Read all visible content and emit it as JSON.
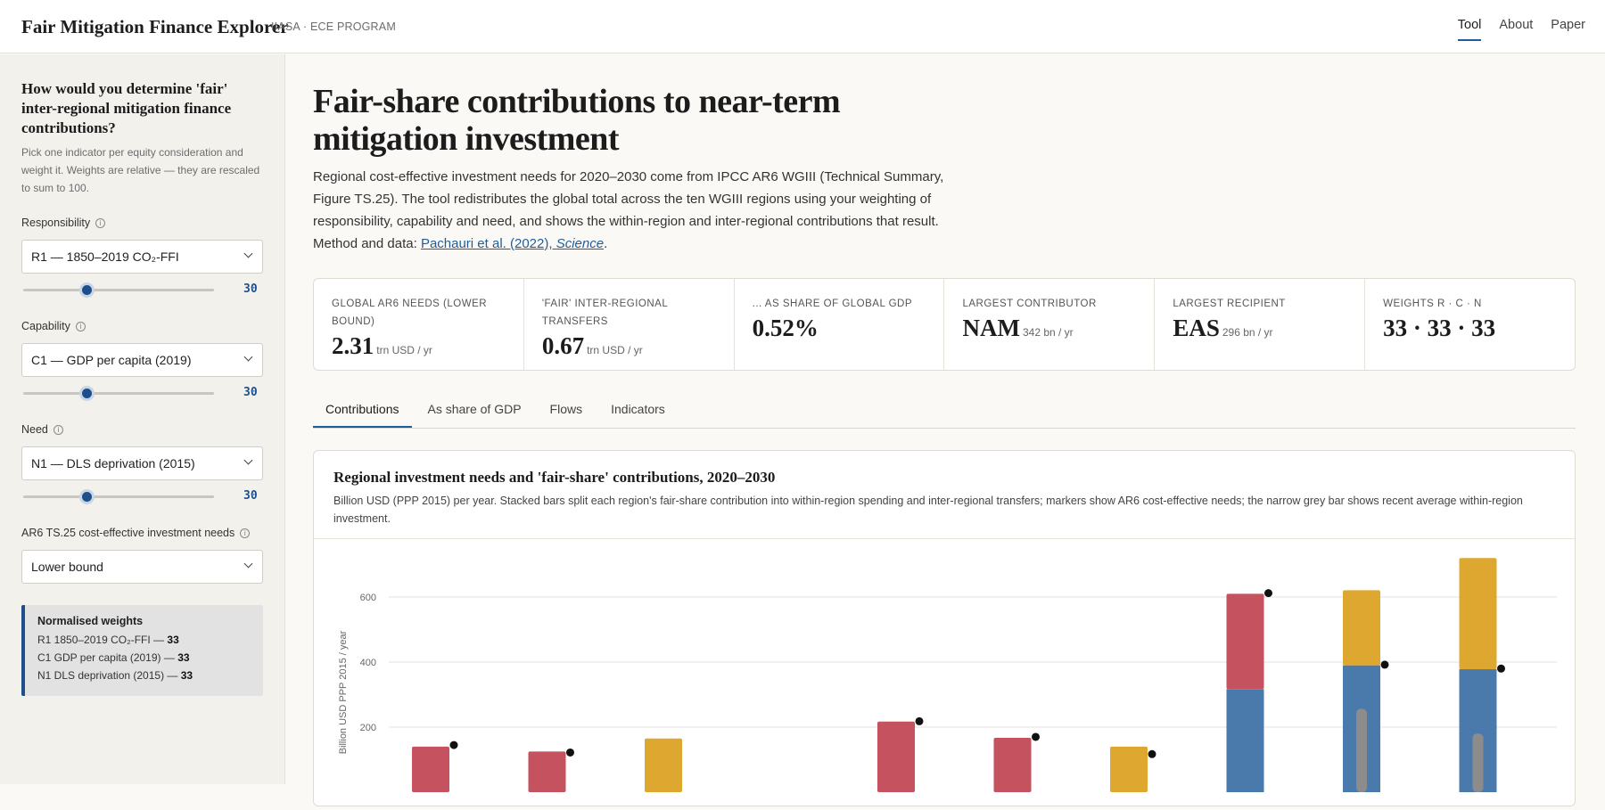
{
  "header": {
    "brand": "Fair Mitigation Finance Explorer",
    "brand_sub": "IIASA · ECE PROGRAM",
    "nav": [
      "Tool",
      "About",
      "Paper"
    ],
    "nav_active": "Tool"
  },
  "sidebar": {
    "title": "How would you determine 'fair' inter-regional mitigation finance contributions?",
    "description": "Pick one indicator per equity consideration and weight it. Weights are relative — they are rescaled to sum to 100.",
    "responsibility": {
      "label": "Responsibility",
      "selected": "R1 — 1850–2019 CO₂-FFI",
      "value": "30",
      "level": 0.33
    },
    "capability": {
      "label": "Capability",
      "selected": "C1 — GDP per capita (2019)",
      "value": "30",
      "level": 0.33
    },
    "need": {
      "label": "Need",
      "selected": "N1 — DLS deprivation (2015)",
      "value": "30",
      "level": 0.33
    },
    "ar6": {
      "label": "AR6 TS.25 cost-effective investment needs",
      "selected": "Lower bound"
    },
    "weights": {
      "title": "Normalised weights",
      "rows": [
        {
          "label": "R1 1850–2019 CO₂-FFI — ",
          "value": "33"
        },
        {
          "label": "C1 GDP per capita (2019) — ",
          "value": "33"
        },
        {
          "label": "N1 DLS deprivation (2015) — ",
          "value": "33"
        }
      ]
    }
  },
  "main": {
    "title": "Fair-share contributions to near-term mitigation investment",
    "description": "Regional cost-effective investment needs for 2020–2030 come from IPCC AR6 WGIII (Technical Summary, Figure TS.25). The tool redistributes the global total across the ten WGIII regions using your weighting of responsibility, capability and need, and shows the within-region and inter-regional contributions that result.",
    "method_prefix": "Method and data: ",
    "method_link": "Pachauri et al. (2022), ",
    "method_link_italic": "Science",
    "method_suffix": ".",
    "stats": [
      {
        "label": "Global AR6 needs (lower bound)",
        "value": "2.31",
        "unit": "trn USD / yr"
      },
      {
        "label": "'Fair' inter-regional transfers",
        "value": "0.67",
        "unit": "trn USD / yr"
      },
      {
        "label": "... as share of global GDP",
        "value": "0.52%",
        "unit": ""
      },
      {
        "label": "Largest contributor",
        "value": "NAM",
        "unit": "342 bn / yr"
      },
      {
        "label": "Largest recipient",
        "value": "EAS",
        "unit": "296 bn / yr"
      },
      {
        "label": "Weights R · C · N",
        "value": "33 · 33 · 33",
        "unit": ""
      }
    ],
    "tabs": [
      "Contributions",
      "As share of GDP",
      "Flows",
      "Indicators"
    ],
    "active_tab": "Contributions"
  },
  "chart_data": {
    "type": "bar",
    "title": "Regional investment needs and 'fair-share' contributions, 2020–2030",
    "subtitle": "Billion USD (PPP 2015) per year. Stacked bars split each region's fair-share contribution into within-region spending and inter-regional transfers; markers show AR6 cost-effective needs; the narrow grey bar shows recent average within-region investment.",
    "ylabel": "Billion USD PPP 2015 / year",
    "ylim": [
      0,
      800
    ],
    "yticks": [
      200,
      400,
      600,
      800
    ],
    "grid": true,
    "colors": {
      "within": "#4a7aab",
      "transfer_pay": "#c4525f",
      "transfer_recv": "#dea72f",
      "recent": "#8c8c8c",
      "need": "#111111"
    },
    "bars": [
      {
        "within": 0,
        "transfer": 140,
        "transfer_kind": "pay",
        "need": 145,
        "recent": null
      },
      {
        "within": 0,
        "transfer": 125,
        "transfer_kind": "pay",
        "need": 122,
        "recent": null
      },
      {
        "within": 0,
        "transfer": 165,
        "transfer_kind": "recv",
        "need": null,
        "recent": null
      },
      {
        "within": 0,
        "transfer": 0,
        "transfer_kind": "none",
        "need": null,
        "recent": null
      },
      {
        "within": 0,
        "transfer": 217,
        "transfer_kind": "pay",
        "need": 218,
        "recent": null
      },
      {
        "within": 0,
        "transfer": 167,
        "transfer_kind": "pay",
        "need": 170,
        "recent": null
      },
      {
        "within": 0,
        "transfer": 140,
        "transfer_kind": "recv",
        "need": 117,
        "recent": null
      },
      {
        "within": 317,
        "transfer": 293,
        "transfer_kind": "pay",
        "need": 612,
        "recent": null
      },
      {
        "within": 390,
        "transfer": 231,
        "transfer_kind": "recv",
        "need": 392,
        "recent": 256
      },
      {
        "within": 378,
        "transfer": 342,
        "transfer_kind": "recv",
        "need": 380,
        "recent": 180
      }
    ]
  }
}
